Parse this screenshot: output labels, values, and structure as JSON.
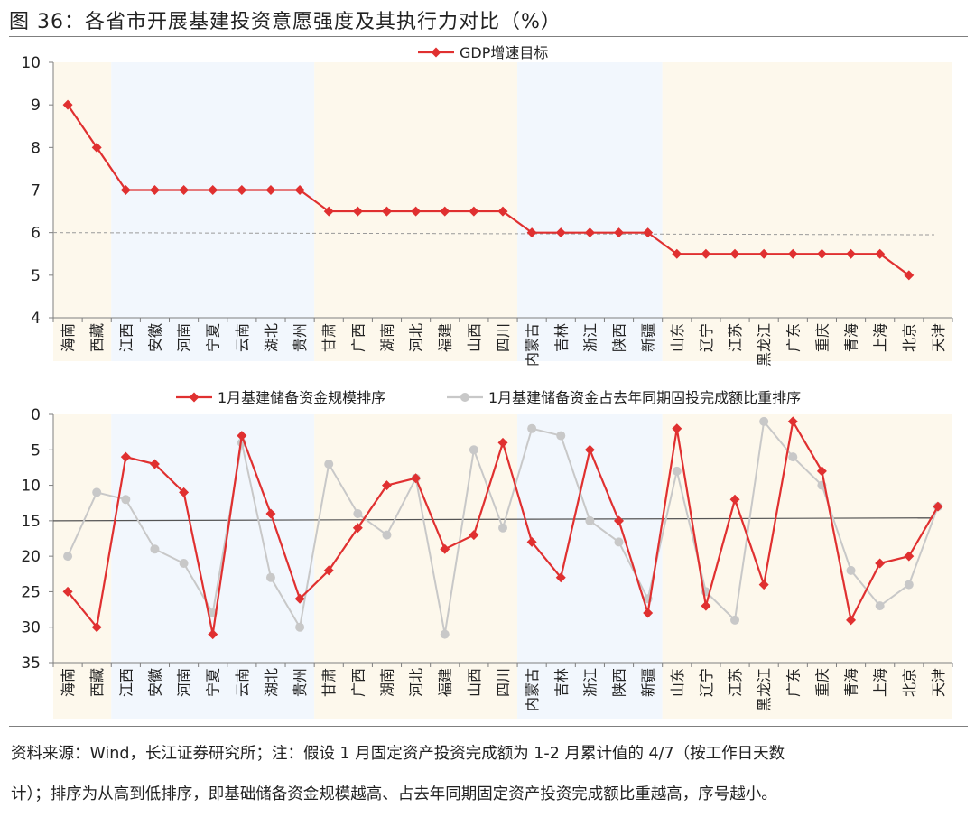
{
  "figure_title": "图 36：各省市开展基建投资意愿强度及其执行力对比（%）",
  "notes": [
    "资料来源：Wind，长江证券研究所；注：假设 1 月固定资产投资完成额为 1-2 月累计值的 4/7（按工作日天数",
    "计）；排序为从高到低排序，即基础储备资金规模越高、占去年同期固定资产投资完成额比重越高，序号越小。"
  ],
  "colors": {
    "red": "#e03030",
    "gray": "#c8c8c8",
    "band_yellow": "#fdf8ec",
    "band_blue": "#f2f7fd",
    "axis": "#7f7f7f"
  },
  "chart_data": [
    {
      "type": "line",
      "title": "",
      "ylim": [
        4,
        10
      ],
      "yticks": [
        "4",
        "5",
        "6",
        "7",
        "8",
        "9",
        "10"
      ],
      "categories": [
        "海南",
        "西藏",
        "江西",
        "安徽",
        "河南",
        "宁夏",
        "云南",
        "湖北",
        "贵州",
        "甘肃",
        "广西",
        "湖南",
        "河北",
        "福建",
        "山西",
        "四川",
        "内蒙古",
        "吉林",
        "浙江",
        "陕西",
        "新疆",
        "山东",
        "辽宁",
        "江苏",
        "黑龙江",
        "广东",
        "重庆",
        "青海",
        "上海",
        "北京",
        "天津"
      ],
      "series": [
        {
          "name": "GDP增速目标",
          "color": "#e03030",
          "marker": "diamond",
          "values": [
            9,
            8,
            7,
            7,
            7,
            7,
            7,
            7,
            7,
            6.5,
            6.5,
            6.5,
            6.5,
            6.5,
            6.5,
            6.5,
            6,
            6,
            6,
            6,
            6,
            5.5,
            5.5,
            5.5,
            5.5,
            5.5,
            5.5,
            5.5,
            5.5,
            5,
            null
          ]
        }
      ],
      "reference_line": {
        "from": 6.0,
        "to": 5.95,
        "style": "dashed"
      },
      "legend": "top-center",
      "background_bands": [
        {
          "from": 0,
          "to": 1,
          "color": "yellow"
        },
        {
          "from": 2,
          "to": 8,
          "color": "blue"
        },
        {
          "from": 9,
          "to": 15,
          "color": "yellow"
        },
        {
          "from": 16,
          "to": 20,
          "color": "blue"
        },
        {
          "from": 21,
          "to": 30,
          "color": "yellow"
        }
      ]
    },
    {
      "type": "line",
      "title": "",
      "ylim": [
        0,
        35
      ],
      "y_inverted": true,
      "yticks": [
        "0",
        "5",
        "10",
        "15",
        "20",
        "25",
        "30",
        "35"
      ],
      "categories": [
        "海南",
        "西藏",
        "江西",
        "安徽",
        "河南",
        "宁夏",
        "云南",
        "湖北",
        "贵州",
        "甘肃",
        "广西",
        "湖南",
        "河北",
        "福建",
        "山西",
        "四川",
        "内蒙古",
        "吉林",
        "浙江",
        "陕西",
        "新疆",
        "山东",
        "辽宁",
        "江苏",
        "黑龙江",
        "广东",
        "重庆",
        "青海",
        "上海",
        "北京",
        "天津"
      ],
      "series": [
        {
          "name": "1月基建储备资金规模排序",
          "color": "#e03030",
          "marker": "diamond",
          "values": [
            25,
            30,
            6,
            7,
            11,
            31,
            3,
            14,
            26,
            22,
            16,
            10,
            9,
            19,
            17,
            4,
            18,
            23,
            5,
            15,
            28,
            2,
            27,
            12,
            24,
            1,
            8,
            29,
            21,
            20,
            13
          ]
        },
        {
          "name": "1月基建储备资金占去年同期固投完成额比重排序",
          "color": "#c8c8c8",
          "marker": "circle",
          "values": [
            20,
            11,
            12,
            19,
            21,
            28,
            4,
            23,
            30,
            7,
            14,
            17,
            9,
            31,
            5,
            16,
            2,
            3,
            15,
            18,
            26,
            8,
            25,
            29,
            1,
            6,
            10,
            22,
            27,
            24,
            13
          ]
        }
      ],
      "reference_line": {
        "from": 15.0,
        "to": 14.6,
        "style": "solid"
      },
      "legend": "top-center",
      "background_bands": [
        {
          "from": 0,
          "to": 1,
          "color": "yellow"
        },
        {
          "from": 2,
          "to": 8,
          "color": "blue"
        },
        {
          "from": 9,
          "to": 15,
          "color": "yellow"
        },
        {
          "from": 16,
          "to": 20,
          "color": "blue"
        },
        {
          "from": 21,
          "to": 30,
          "color": "yellow"
        }
      ]
    }
  ]
}
